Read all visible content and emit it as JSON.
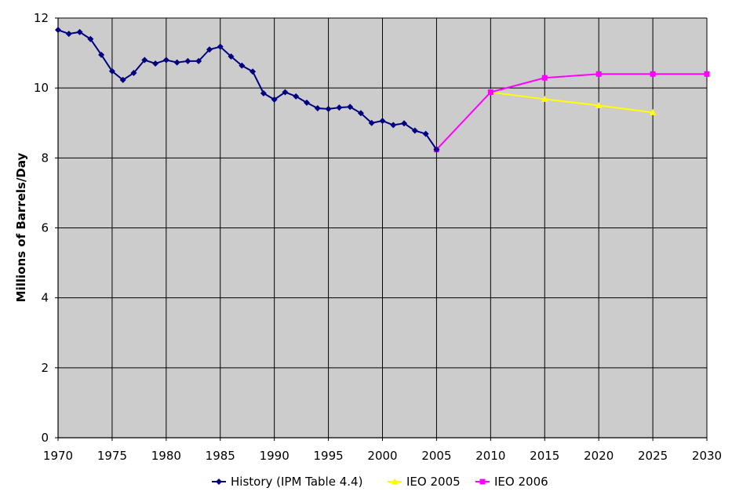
{
  "chart_data": {
    "type": "line",
    "title": "",
    "xlabel": "",
    "ylabel": "Millions of Barrels/Day",
    "xlim": [
      1970,
      2030
    ],
    "ylim": [
      0,
      12
    ],
    "x_ticks": [
      1970,
      1975,
      1980,
      1985,
      1990,
      1995,
      2000,
      2005,
      2010,
      2015,
      2020,
      2025,
      2030
    ],
    "y_ticks": [
      0,
      2,
      4,
      6,
      8,
      10,
      12
    ],
    "grid": true,
    "legend_position": "bottom",
    "plot_background": "#cccccc",
    "series": [
      {
        "name": "History (IPM Table 4.4)",
        "color": "#000080",
        "marker": "diamond",
        "x": [
          1970,
          1971,
          1972,
          1973,
          1974,
          1975,
          1976,
          1977,
          1978,
          1979,
          1980,
          1981,
          1982,
          1983,
          1984,
          1985,
          1986,
          1987,
          1988,
          1989,
          1990,
          1991,
          1992,
          1993,
          1994,
          1995,
          1996,
          1997,
          1998,
          1999,
          2000,
          2001,
          2002,
          2003,
          2004,
          2005
        ],
        "y": [
          11.66,
          11.55,
          11.6,
          11.4,
          10.95,
          10.48,
          10.23,
          10.43,
          10.8,
          10.7,
          10.8,
          10.73,
          10.77,
          10.77,
          11.1,
          11.18,
          10.9,
          10.64,
          10.47,
          9.85,
          9.67,
          9.88,
          9.76,
          9.58,
          9.42,
          9.4,
          9.44,
          9.46,
          9.28,
          9.0,
          9.06,
          8.94,
          8.99,
          8.78,
          8.69,
          8.24
        ]
      },
      {
        "name": "IEO 2005",
        "color": "#ffff00",
        "marker": "triangle",
        "x": [
          2010,
          2015,
          2020,
          2025
        ],
        "y": [
          9.88,
          9.68,
          9.5,
          9.3
        ]
      },
      {
        "name": "IEO 2006",
        "color": "#ff00ff",
        "marker": "square",
        "x": [
          2005,
          2010,
          2015,
          2020,
          2025,
          2030
        ],
        "y": [
          8.24,
          9.88,
          10.29,
          10.4,
          10.4,
          10.4
        ]
      }
    ]
  }
}
